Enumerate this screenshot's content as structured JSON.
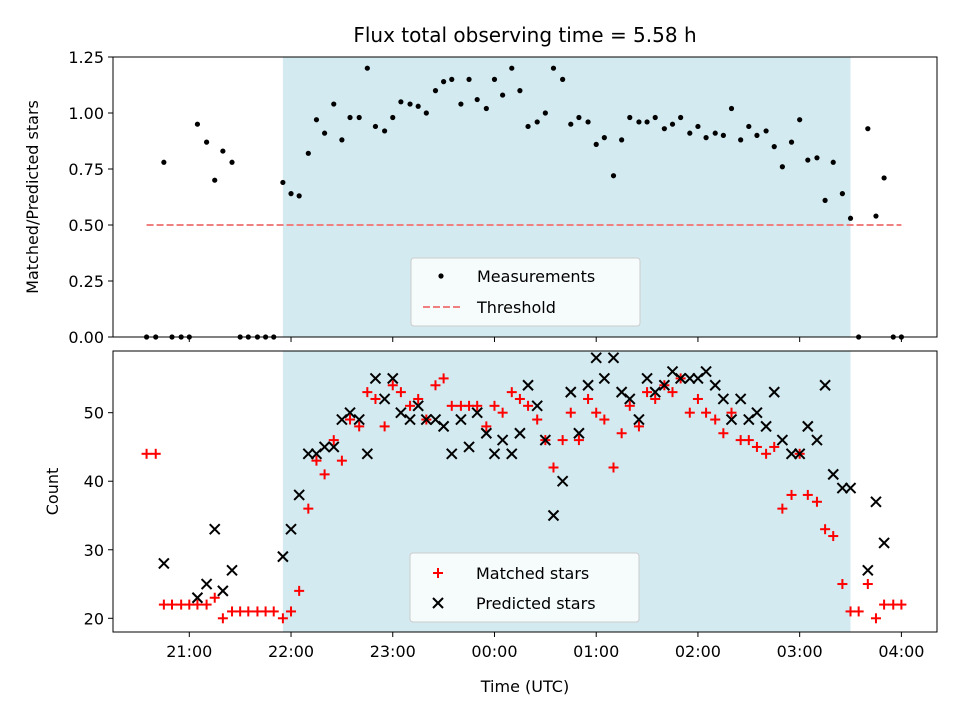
{
  "chart_data": [
    {
      "type": "scatter",
      "title": "Flux total observing time = 5.58 h",
      "xlabel": "",
      "ylabel": "Matched/Predicted stars",
      "x_unit": "hours (UTC, continuous, 24 = 00:00 next day)",
      "xlim": [
        20.25,
        28.35
      ],
      "ylim": [
        0,
        1.25
      ],
      "y_ticks": [
        "0.00",
        "0.25",
        "0.50",
        "0.75",
        "1.00",
        "1.25"
      ],
      "shaded_region": [
        21.92,
        27.5
      ],
      "shade_color": "#d3eaf0",
      "legend": {
        "placement": "lower center",
        "entries": [
          "Measurements",
          "Threshold"
        ]
      },
      "threshold": {
        "name": "Threshold",
        "value": 0.5,
        "x_range": [
          20.58,
          28.0
        ],
        "color": "#f08080"
      },
      "series": [
        {
          "name": "Measurements",
          "color": "#000000",
          "points": [
            [
              20.58,
              0
            ],
            [
              20.67,
              0
            ],
            [
              20.75,
              0.78
            ],
            [
              20.83,
              0
            ],
            [
              20.92,
              0
            ],
            [
              21.0,
              0
            ],
            [
              21.08,
              0.95
            ],
            [
              21.17,
              0.87
            ],
            [
              21.25,
              0.7
            ],
            [
              21.33,
              0.83
            ],
            [
              21.42,
              0.78
            ],
            [
              21.5,
              0
            ],
            [
              21.58,
              0
            ],
            [
              21.67,
              0
            ],
            [
              21.75,
              0
            ],
            [
              21.83,
              0
            ],
            [
              21.92,
              0.69
            ],
            [
              22.0,
              0.64
            ],
            [
              22.08,
              0.63
            ],
            [
              22.17,
              0.82
            ],
            [
              22.25,
              0.97
            ],
            [
              22.33,
              0.91
            ],
            [
              22.42,
              1.04
            ],
            [
              22.5,
              0.88
            ],
            [
              22.58,
              0.98
            ],
            [
              22.67,
              0.98
            ],
            [
              22.75,
              1.2
            ],
            [
              22.83,
              0.94
            ],
            [
              22.92,
              0.92
            ],
            [
              23.0,
              0.98
            ],
            [
              23.08,
              1.05
            ],
            [
              23.17,
              1.04
            ],
            [
              23.25,
              1.03
            ],
            [
              23.33,
              1.0
            ],
            [
              23.42,
              1.1
            ],
            [
              23.5,
              1.14
            ],
            [
              23.58,
              1.15
            ],
            [
              23.67,
              1.04
            ],
            [
              23.75,
              1.15
            ],
            [
              23.83,
              1.06
            ],
            [
              23.92,
              1.02
            ],
            [
              24.0,
              1.15
            ],
            [
              24.08,
              1.08
            ],
            [
              24.17,
              1.2
            ],
            [
              24.25,
              1.1
            ],
            [
              24.33,
              0.94
            ],
            [
              24.42,
              0.96
            ],
            [
              24.5,
              1.0
            ],
            [
              24.58,
              1.2
            ],
            [
              24.67,
              1.15
            ],
            [
              24.75,
              0.95
            ],
            [
              24.83,
              0.98
            ],
            [
              24.92,
              0.96
            ],
            [
              25.0,
              0.86
            ],
            [
              25.08,
              0.89
            ],
            [
              25.17,
              0.72
            ],
            [
              25.25,
              0.88
            ],
            [
              25.33,
              0.98
            ],
            [
              25.42,
              0.96
            ],
            [
              25.5,
              0.96
            ],
            [
              25.58,
              0.98
            ],
            [
              25.67,
              0.93
            ],
            [
              25.75,
              0.95
            ],
            [
              25.83,
              0.98
            ],
            [
              25.92,
              0.91
            ],
            [
              26.0,
              0.94
            ],
            [
              26.08,
              0.89
            ],
            [
              26.17,
              0.91
            ],
            [
              26.25,
              0.9
            ],
            [
              26.33,
              1.02
            ],
            [
              26.42,
              0.88
            ],
            [
              26.5,
              0.94
            ],
            [
              26.58,
              0.9
            ],
            [
              26.67,
              0.92
            ],
            [
              26.75,
              0.85
            ],
            [
              26.83,
              0.76
            ],
            [
              26.92,
              0.87
            ],
            [
              27.0,
              0.97
            ],
            [
              27.08,
              0.79
            ],
            [
              27.17,
              0.8
            ],
            [
              27.25,
              0.61
            ],
            [
              27.33,
              0.78
            ],
            [
              27.42,
              0.64
            ],
            [
              27.5,
              0.53
            ],
            [
              27.58,
              0
            ],
            [
              27.67,
              0.93
            ],
            [
              27.75,
              0.54
            ],
            [
              27.83,
              0.71
            ],
            [
              27.92,
              0
            ],
            [
              28.0,
              0
            ]
          ]
        }
      ]
    },
    {
      "type": "scatter",
      "title": "",
      "xlabel": "Time (UTC)",
      "ylabel": "Count",
      "xlim": [
        20.25,
        28.35
      ],
      "ylim": [
        18,
        59
      ],
      "y_ticks": [
        "20",
        "30",
        "40",
        "50"
      ],
      "x_ticks": [
        "21:00",
        "22:00",
        "23:00",
        "00:00",
        "01:00",
        "02:00",
        "03:00",
        "04:00"
      ],
      "x_tick_values": [
        21,
        22,
        23,
        24,
        25,
        26,
        27,
        28
      ],
      "shaded_region": [
        21.92,
        27.5
      ],
      "shade_color": "#d3eaf0",
      "legend": {
        "placement": "lower center",
        "entries": [
          "Matched stars",
          "Predicted stars"
        ]
      },
      "series": [
        {
          "name": "Matched stars",
          "marker": "plus",
          "color": "#ff0000",
          "points": [
            [
              20.58,
              44
            ],
            [
              20.67,
              44
            ],
            [
              20.75,
              22
            ],
            [
              20.83,
              22
            ],
            [
              20.92,
              22
            ],
            [
              21.0,
              22
            ],
            [
              21.08,
              22
            ],
            [
              21.17,
              22
            ],
            [
              21.25,
              23
            ],
            [
              21.33,
              20
            ],
            [
              21.42,
              21
            ],
            [
              21.5,
              21
            ],
            [
              21.58,
              21
            ],
            [
              21.67,
              21
            ],
            [
              21.75,
              21
            ],
            [
              21.83,
              21
            ],
            [
              21.92,
              20
            ],
            [
              22.0,
              21
            ],
            [
              22.08,
              24
            ],
            [
              22.17,
              36
            ],
            [
              22.25,
              43
            ],
            [
              22.33,
              41
            ],
            [
              22.42,
              46
            ],
            [
              22.5,
              43
            ],
            [
              22.58,
              49
            ],
            [
              22.67,
              48
            ],
            [
              22.75,
              53
            ],
            [
              22.83,
              52
            ],
            [
              22.92,
              48
            ],
            [
              23.0,
              54
            ],
            [
              23.08,
              53
            ],
            [
              23.17,
              51
            ],
            [
              23.25,
              52
            ],
            [
              23.33,
              49
            ],
            [
              23.42,
              54
            ],
            [
              23.5,
              55
            ],
            [
              23.58,
              51
            ],
            [
              23.67,
              51
            ],
            [
              23.75,
              51
            ],
            [
              23.83,
              51
            ],
            [
              23.92,
              48
            ],
            [
              24.0,
              51
            ],
            [
              24.08,
              50
            ],
            [
              24.17,
              53
            ],
            [
              24.25,
              52
            ],
            [
              24.33,
              51
            ],
            [
              24.42,
              49
            ],
            [
              24.5,
              46
            ],
            [
              24.58,
              42
            ],
            [
              24.67,
              46
            ],
            [
              24.75,
              50
            ],
            [
              24.83,
              46
            ],
            [
              24.92,
              52
            ],
            [
              25.0,
              50
            ],
            [
              25.08,
              49
            ],
            [
              25.17,
              42
            ],
            [
              25.25,
              47
            ],
            [
              25.33,
              51
            ],
            [
              25.42,
              48
            ],
            [
              25.5,
              53
            ],
            [
              25.58,
              52
            ],
            [
              25.67,
              54
            ],
            [
              25.75,
              53
            ],
            [
              25.83,
              55
            ],
            [
              25.92,
              50
            ],
            [
              26.0,
              52
            ],
            [
              26.08,
              50
            ],
            [
              26.17,
              49
            ],
            [
              26.25,
              47
            ],
            [
              26.33,
              50
            ],
            [
              26.42,
              46
            ],
            [
              26.5,
              46
            ],
            [
              26.58,
              45
            ],
            [
              26.67,
              44
            ],
            [
              26.75,
              45
            ],
            [
              26.83,
              36
            ],
            [
              26.92,
              38
            ],
            [
              27.0,
              44
            ],
            [
              27.08,
              38
            ],
            [
              27.17,
              37
            ],
            [
              27.25,
              33
            ],
            [
              27.33,
              32
            ],
            [
              27.42,
              25
            ],
            [
              27.5,
              21
            ],
            [
              27.58,
              21
            ],
            [
              27.67,
              25
            ],
            [
              27.75,
              20
            ],
            [
              27.83,
              22
            ],
            [
              27.92,
              22
            ],
            [
              28.0,
              22
            ]
          ]
        },
        {
          "name": "Predicted stars",
          "marker": "x",
          "color": "#000000",
          "points": [
            [
              20.75,
              28
            ],
            [
              21.08,
              23
            ],
            [
              21.17,
              25
            ],
            [
              21.25,
              33
            ],
            [
              21.33,
              24
            ],
            [
              21.42,
              27
            ],
            [
              21.92,
              29
            ],
            [
              22.0,
              33
            ],
            [
              22.08,
              38
            ],
            [
              22.17,
              44
            ],
            [
              22.25,
              44
            ],
            [
              22.33,
              45
            ],
            [
              22.42,
              45
            ],
            [
              22.5,
              49
            ],
            [
              22.58,
              50
            ],
            [
              22.67,
              49
            ],
            [
              22.75,
              44
            ],
            [
              22.83,
              55
            ],
            [
              22.92,
              52
            ],
            [
              23.0,
              55
            ],
            [
              23.08,
              50
            ],
            [
              23.17,
              49
            ],
            [
              23.25,
              51
            ],
            [
              23.33,
              49
            ],
            [
              23.42,
              49
            ],
            [
              23.5,
              48
            ],
            [
              23.58,
              44
            ],
            [
              23.67,
              49
            ],
            [
              23.75,
              45
            ],
            [
              23.83,
              50
            ],
            [
              23.92,
              47
            ],
            [
              24.0,
              44
            ],
            [
              24.08,
              46
            ],
            [
              24.17,
              44
            ],
            [
              24.25,
              47
            ],
            [
              24.33,
              54
            ],
            [
              24.42,
              51
            ],
            [
              24.5,
              46
            ],
            [
              24.58,
              35
            ],
            [
              24.67,
              40
            ],
            [
              24.75,
              53
            ],
            [
              24.83,
              47
            ],
            [
              24.92,
              54
            ],
            [
              25.0,
              58
            ],
            [
              25.08,
              55
            ],
            [
              25.17,
              58
            ],
            [
              25.25,
              53
            ],
            [
              25.33,
              52
            ],
            [
              25.42,
              49
            ],
            [
              25.5,
              55
            ],
            [
              25.58,
              53
            ],
            [
              25.67,
              54
            ],
            [
              25.75,
              56
            ],
            [
              25.83,
              55
            ],
            [
              25.92,
              55
            ],
            [
              26.0,
              55
            ],
            [
              26.08,
              56
            ],
            [
              26.17,
              54
            ],
            [
              26.25,
              52
            ],
            [
              26.33,
              49
            ],
            [
              26.42,
              52
            ],
            [
              26.5,
              49
            ],
            [
              26.58,
              50
            ],
            [
              26.67,
              48
            ],
            [
              26.75,
              53
            ],
            [
              26.83,
              46
            ],
            [
              26.92,
              44
            ],
            [
              27.0,
              44
            ],
            [
              27.08,
              48
            ],
            [
              27.17,
              46
            ],
            [
              27.25,
              54
            ],
            [
              27.33,
              41
            ],
            [
              27.42,
              39
            ],
            [
              27.5,
              39
            ],
            [
              27.67,
              27
            ],
            [
              27.75,
              37
            ],
            [
              27.83,
              31
            ]
          ]
        }
      ]
    }
  ]
}
